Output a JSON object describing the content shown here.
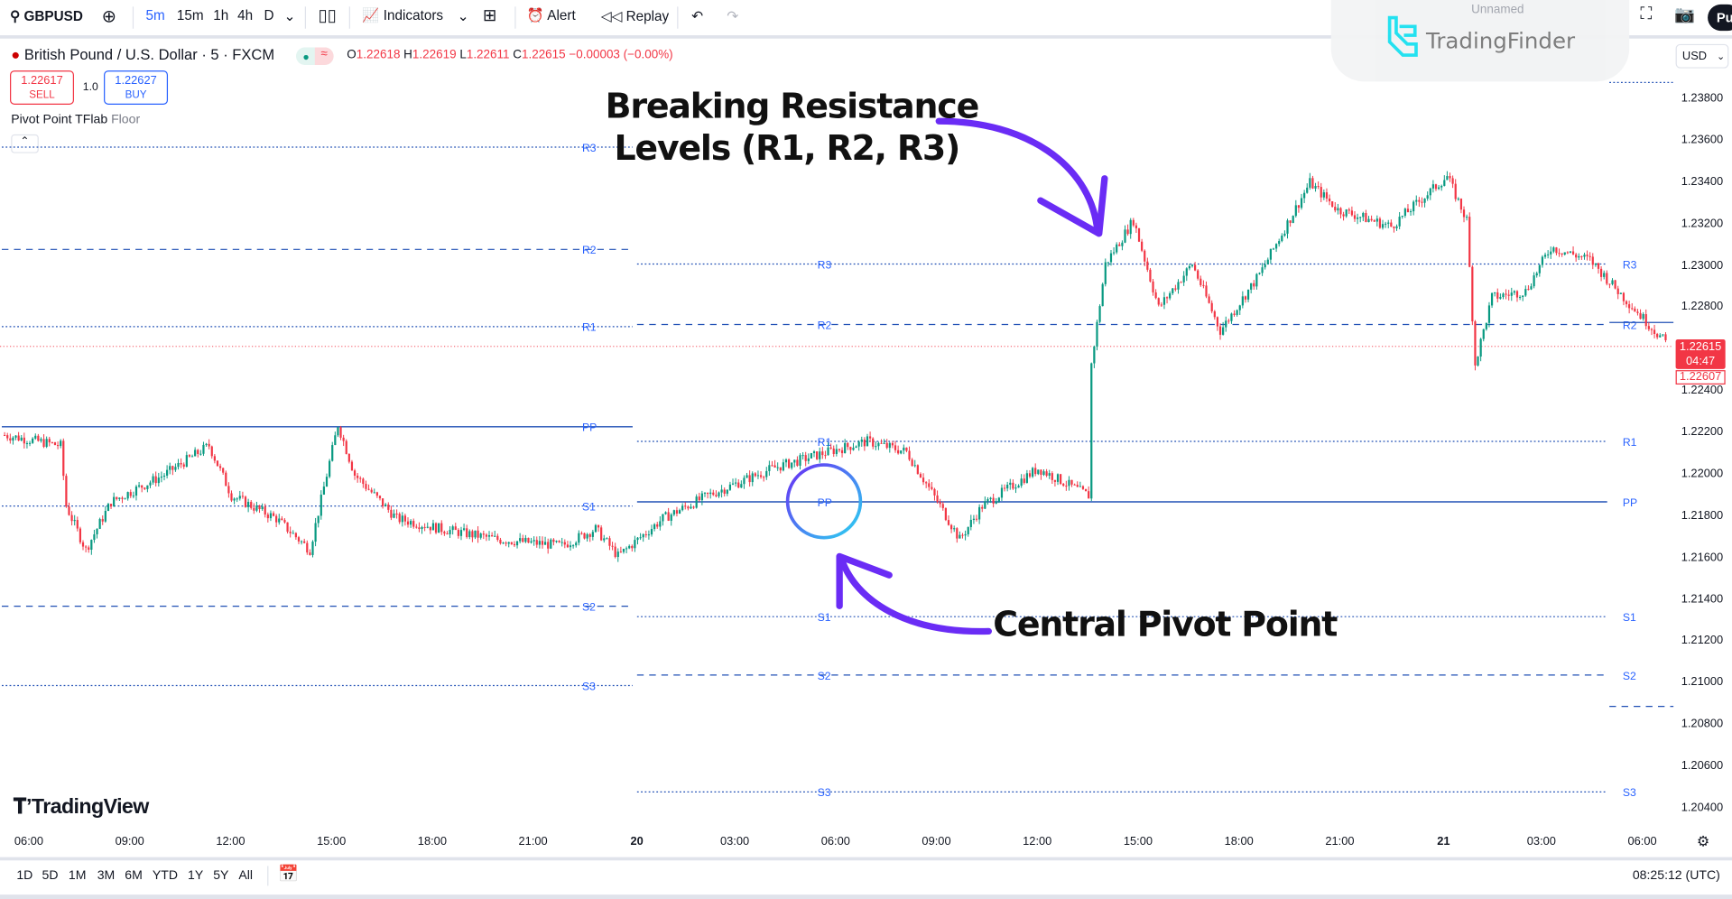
{
  "toolbar": {
    "symbol": "GBPUSD",
    "intervals": [
      "5m",
      "15m",
      "1h",
      "4h",
      "D"
    ],
    "active_interval": "5m",
    "indicators": "Indicators",
    "alert": "Alert",
    "replay": "Replay",
    "layout_name": "Unnamed",
    "publish": "Pu"
  },
  "legend": {
    "title": "British Pound / U.S. Dollar · 5 · FXCM",
    "o_label": "O",
    "o": "1.22618",
    "h_label": "H",
    "h": "1.22619",
    "l_label": "L",
    "l": "1.22611",
    "c_label": "C",
    "c": "1.22615",
    "change": "−0.00003 (−0.00%)",
    "sell_price": "1.22617",
    "sell": "SELL",
    "qty": "1.0",
    "buy_price": "1.22627",
    "buy": "BUY",
    "indicator_name": "Pivot Point TFlab",
    "indicator_param": "Floor"
  },
  "watermark": {
    "brand": "TradingFinder"
  },
  "currency": "USD",
  "annotations": {
    "resistance": "Breaking Resistance Levels (R1, R2, R3)",
    "resistance_line1": "Breaking Resistance",
    "resistance_line2": "Levels (R1, R2, R3)",
    "pivot": "Central Pivot Point",
    "accent": "#6a2cf5"
  },
  "price_badge": {
    "price": "1.22615",
    "countdown": "04:47",
    "bid": "1.22607"
  },
  "branding": "TradingView",
  "bottom": {
    "ranges": [
      "1D",
      "5D",
      "1M",
      "3M",
      "6M",
      "YTD",
      "1Y",
      "5Y",
      "All"
    ],
    "clock": "08:25:12 (UTC)"
  },
  "chart_data": {
    "type": "candlestick",
    "ylim": [
      1.203,
      1.2395
    ],
    "y_ticks": [
      "1.23800",
      "1.23600",
      "1.23400",
      "1.23200",
      "1.23000",
      "1.22800",
      "1.22400",
      "1.22200",
      "1.22000",
      "1.21800",
      "1.21600",
      "1.21400",
      "1.21200",
      "1.21000",
      "1.20800",
      "1.20600",
      "1.20400"
    ],
    "x_ticks": [
      "06:00",
      "09:00",
      "12:00",
      "15:00",
      "18:00",
      "21:00",
      "20",
      "03:00",
      "06:00",
      "09:00",
      "12:00",
      "15:00",
      "18:00",
      "21:00",
      "21",
      "03:00",
      "06:00"
    ],
    "colors": {
      "up": "#089981",
      "down": "#f23645",
      "pivot": "#2962ff"
    },
    "close_path": [
      [
        "19 05:15",
        1.2219
      ],
      [
        "19 06:55",
        1.2214
      ],
      [
        "19 07:05",
        1.2185
      ],
      [
        "19 07:40",
        1.2164
      ],
      [
        "19 08:25",
        1.2187
      ],
      [
        "19 10:00",
        1.22
      ],
      [
        "19 11:20",
        1.2214
      ],
      [
        "19 12:00",
        1.219
      ],
      [
        "19 13:20",
        1.2179
      ],
      [
        "19 14:20",
        1.2164
      ],
      [
        "19 15:10",
        1.2224
      ],
      [
        "19 15:40",
        1.22
      ],
      [
        "19 16:55",
        1.2179
      ],
      [
        "19 18:15",
        1.2174
      ],
      [
        "19 19:55",
        1.2169
      ],
      [
        "19 21:50",
        1.2166
      ],
      [
        "19 22:50",
        1.2174
      ],
      [
        "19 23:30",
        1.2161
      ],
      [
        "20 00:50",
        1.2179
      ],
      [
        "20 02:10",
        1.219
      ],
      [
        "20 04:05",
        1.2203
      ],
      [
        "20 05:45",
        1.2211
      ],
      [
        "20 06:55",
        1.2216
      ],
      [
        "20 08:05",
        1.2211
      ],
      [
        "20 09:05",
        1.2185
      ],
      [
        "20 09:40",
        1.2169
      ],
      [
        "20 10:20",
        1.2185
      ],
      [
        "20 12:00",
        1.2203
      ],
      [
        "20 13:30",
        1.219
      ],
      [
        "20 13:35",
        1.2253
      ],
      [
        "20 14:00",
        1.2301
      ],
      [
        "20 14:50",
        1.2322
      ],
      [
        "20 15:35",
        1.228
      ],
      [
        "20 16:35",
        1.2301
      ],
      [
        "20 17:25",
        1.2269
      ],
      [
        "20 18:35",
        1.2296
      ],
      [
        "20 20:05",
        1.234
      ],
      [
        "20 20:55",
        1.2327
      ],
      [
        "20 22:30",
        1.2319
      ],
      [
        "21 00:10",
        1.2343
      ],
      [
        "21 00:45",
        1.2322
      ],
      [
        "21 01:00",
        1.2253
      ],
      [
        "21 01:30",
        1.2285
      ],
      [
        "21 02:30",
        1.2288
      ],
      [
        "21 03:15",
        1.2309
      ],
      [
        "21 04:25",
        1.2303
      ],
      [
        "21 05:25",
        1.2285
      ],
      [
        "21 06:45",
        1.2262
      ]
    ],
    "pivot_sessions": [
      {
        "from": "19 05:10",
        "to": "20 00:00",
        "levels": {
          "R3": 1.2357,
          "R2": 1.2308,
          "R1": 1.2271,
          "PP": 1.2223,
          "S1": 1.2185,
          "S2": 1.2137,
          "S3": 1.2099
        }
      },
      {
        "from": "20 00:00",
        "to": "21 00:00",
        "levels": {
          "R3": 1.2301,
          "R2": 1.2272,
          "R1": 1.2216,
          "PP": 1.2187,
          "S1": 1.2132,
          "S2": 1.2104,
          "S3": 1.2048
        }
      },
      {
        "from": "21 00:00",
        "to": "21 06:55",
        "levels": {
          "R3": 1.2388,
          "R2": 1.2273,
          "S2": 1.2089
        }
      }
    ],
    "current_price": 1.22615
  }
}
